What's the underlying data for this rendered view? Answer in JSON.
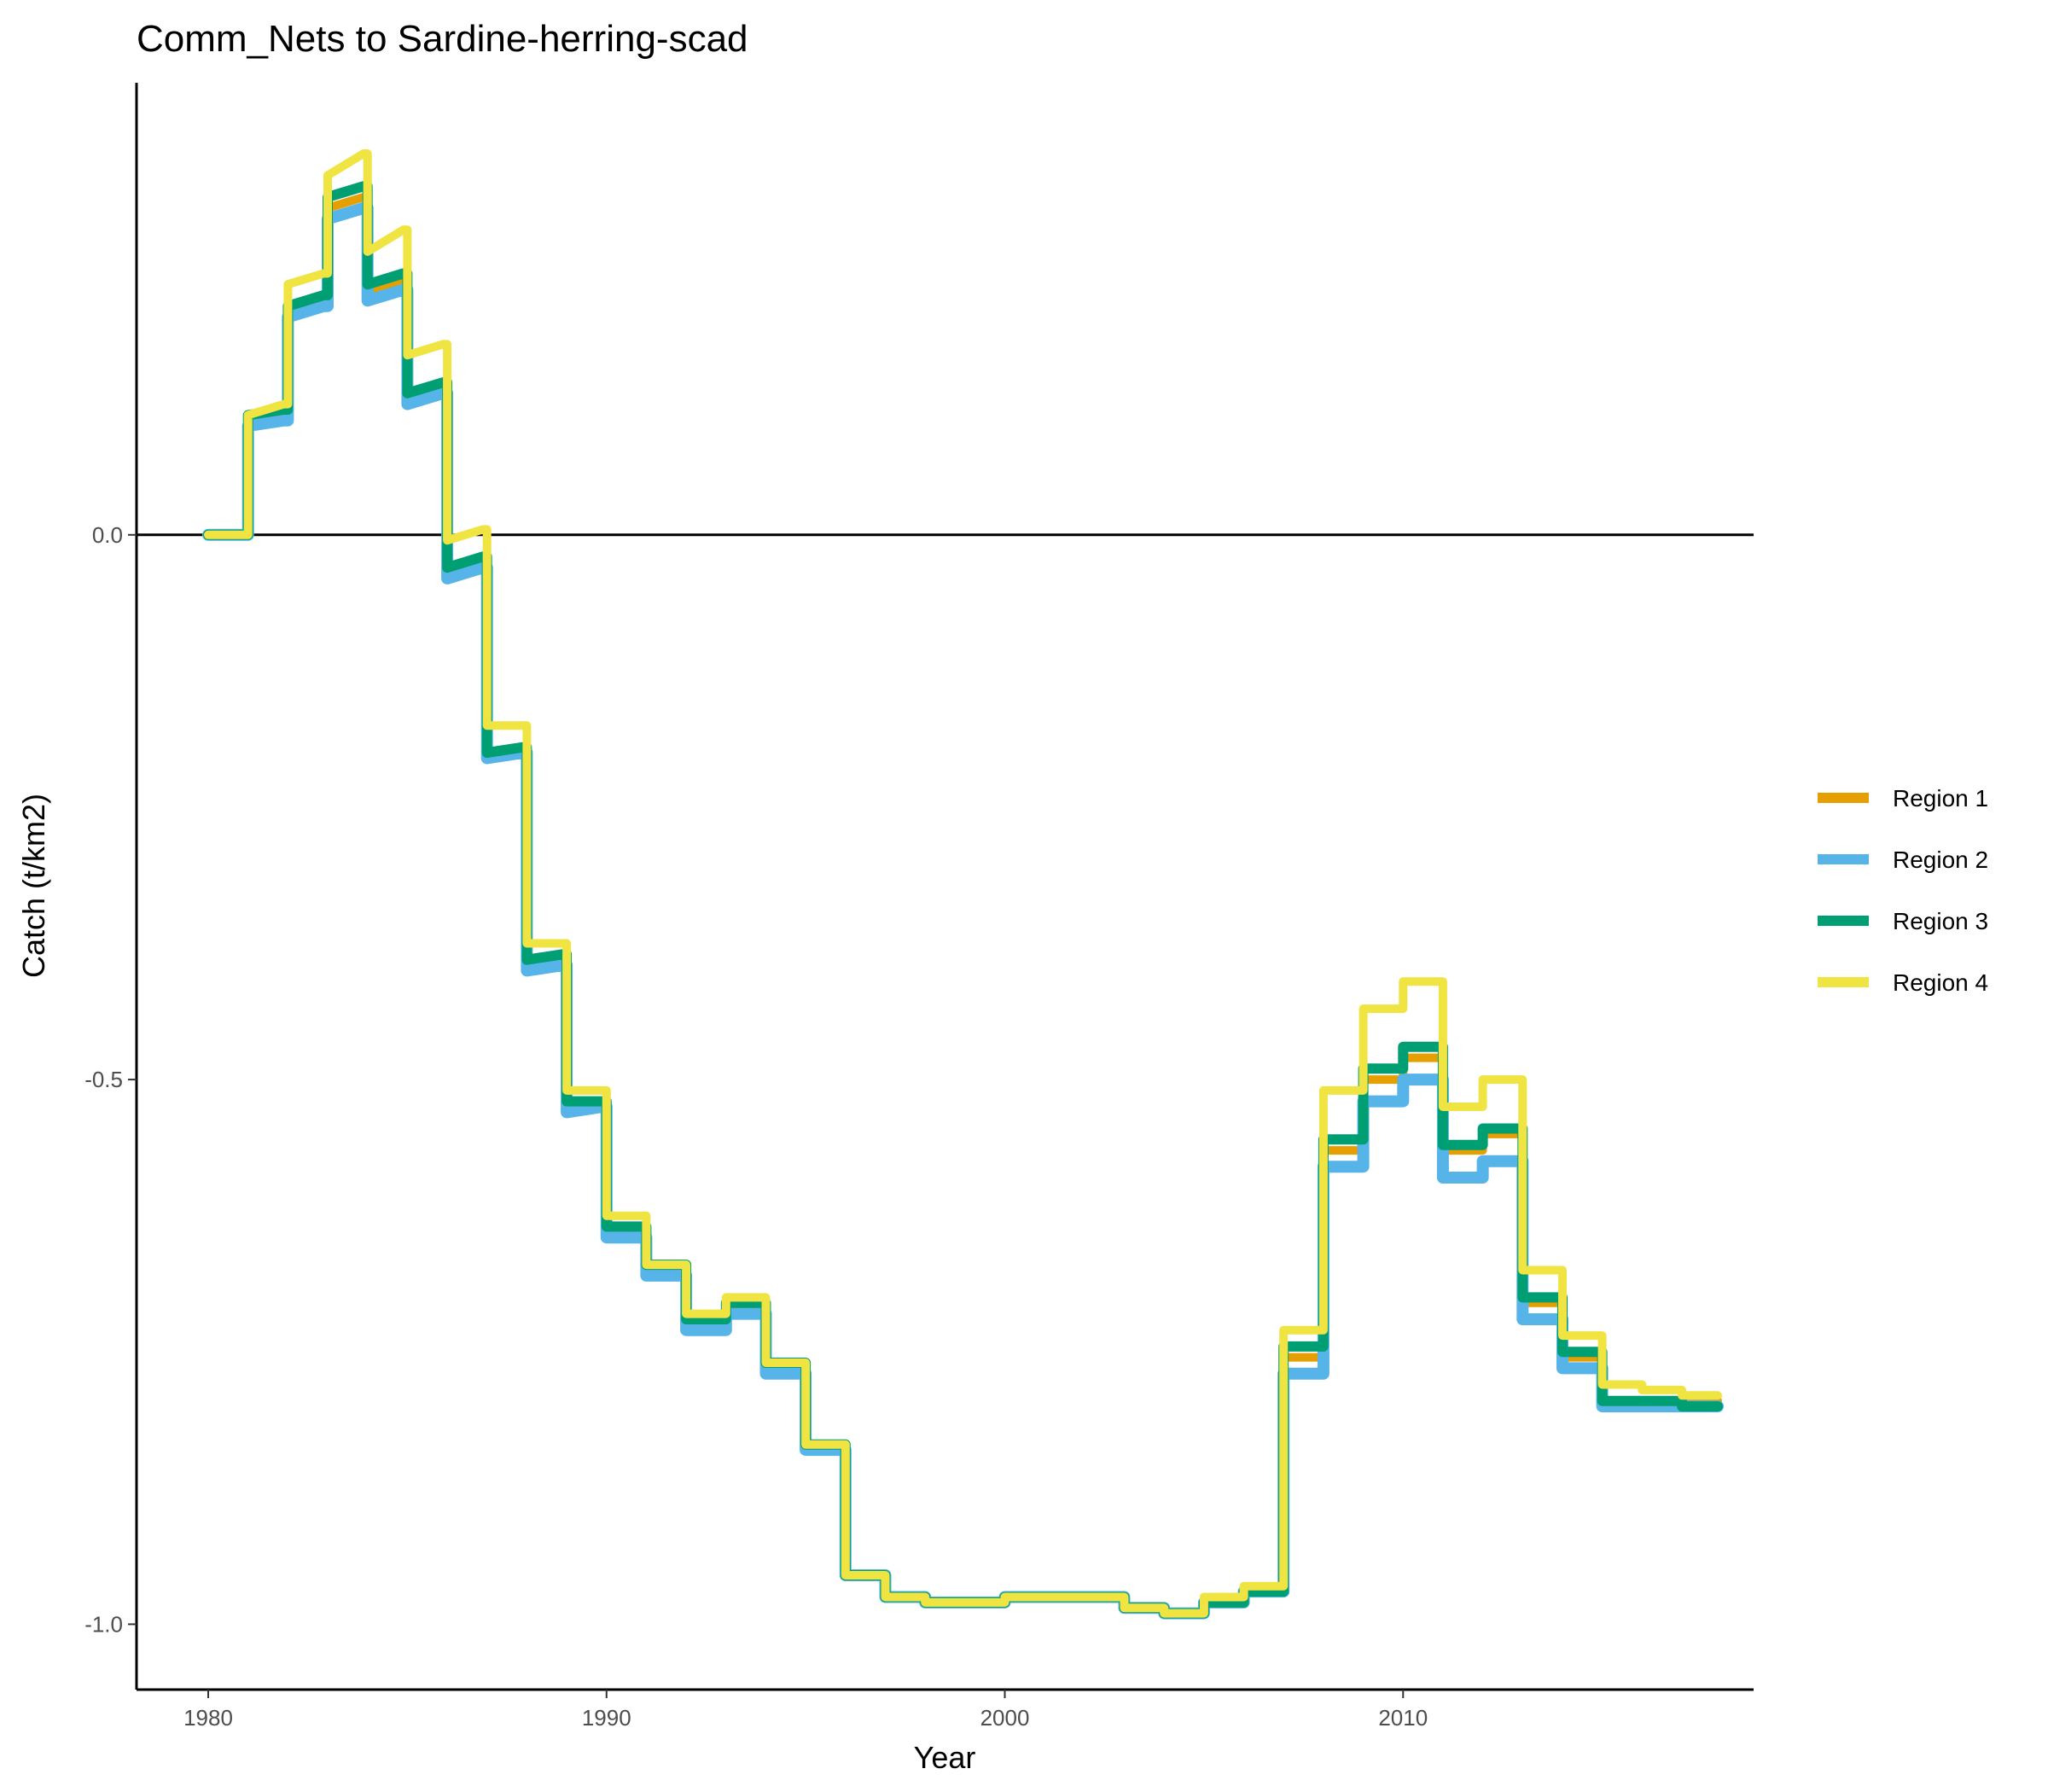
{
  "chart_data": {
    "type": "line",
    "step": true,
    "title": "Comm_Nets to Sardine-herring-scad",
    "xlabel": "Year",
    "ylabel": "Catch (t/km2)",
    "xlim": [
      1978.2,
      2018.8
    ],
    "ylim": [
      -1.06,
      0.415
    ],
    "x_ticks": [
      1980,
      1990,
      2000,
      2010
    ],
    "y_ticks": [
      0.0,
      -0.5,
      -1.0
    ],
    "x_tick_labels": [
      "1980",
      "1990",
      "2000",
      "2010"
    ],
    "y_tick_labels": [
      "0.0",
      "-0.5",
      "-1.0"
    ],
    "reference_line_y": 0,
    "grid": false,
    "legend_position": "right",
    "x": [
      1980,
      1981,
      1982,
      1983,
      1984,
      1985,
      1986,
      1987,
      1988,
      1989,
      1990,
      1991,
      1992,
      1993,
      1994,
      1995,
      1996,
      1997,
      1998,
      1999,
      2000,
      2001,
      2002,
      2003,
      2004,
      2005,
      2006,
      2007,
      2008,
      2009,
      2010,
      2011,
      2012,
      2013,
      2014,
      2015,
      2016,
      2017
    ],
    "series": [
      {
        "name": "Region 1",
        "color": "#E69F00",
        "step_values": [
          [
            0.0,
            0.0
          ],
          [
            0.105,
            0.11
          ],
          [
            0.21,
            0.22
          ],
          [
            0.3,
            0.31
          ],
          [
            0.22,
            0.235
          ],
          [
            0.13,
            0.14
          ],
          [
            -0.035,
            -0.02
          ],
          [
            -0.2,
            -0.195
          ],
          [
            -0.39,
            -0.385
          ],
          [
            -0.525,
            -0.52
          ],
          [
            -0.64,
            -0.64
          ],
          [
            -0.675,
            -0.675
          ],
          [
            -0.725,
            -0.725
          ],
          [
            -0.71,
            -0.71
          ],
          [
            -0.765,
            -0.765
          ],
          [
            -0.835,
            -0.835
          ],
          [
            -0.955,
            -0.955
          ],
          [
            -0.975,
            -0.975
          ],
          [
            -0.98,
            -0.98
          ],
          [
            -0.98,
            -0.98
          ],
          [
            -0.975,
            -0.975
          ],
          [
            -0.975,
            -0.975
          ],
          [
            -0.975,
            -0.975
          ],
          [
            -0.985,
            -0.985
          ],
          [
            -0.99,
            -0.99
          ],
          [
            -0.98,
            -0.98
          ],
          [
            -0.97,
            -0.97
          ],
          [
            -0.755,
            -0.755
          ],
          [
            -0.565,
            -0.565
          ],
          [
            -0.5,
            -0.5
          ],
          [
            -0.48,
            -0.48
          ],
          [
            -0.565,
            -0.565
          ],
          [
            -0.55,
            -0.55
          ],
          [
            -0.705,
            -0.705
          ],
          [
            -0.755,
            -0.755
          ],
          [
            -0.795,
            -0.795
          ],
          [
            -0.795,
            -0.795
          ],
          [
            -0.795,
            -0.795
          ]
        ]
      },
      {
        "name": "Region 2",
        "color": "#56B4E9",
        "step_values": [
          [
            0.0,
            0.0
          ],
          [
            0.1,
            0.105
          ],
          [
            0.2,
            0.21
          ],
          [
            0.29,
            0.3
          ],
          [
            0.215,
            0.225
          ],
          [
            0.12,
            0.13
          ],
          [
            -0.04,
            -0.03
          ],
          [
            -0.205,
            -0.2
          ],
          [
            -0.4,
            -0.395
          ],
          [
            -0.53,
            -0.525
          ],
          [
            -0.645,
            -0.645
          ],
          [
            -0.68,
            -0.68
          ],
          [
            -0.73,
            -0.73
          ],
          [
            -0.715,
            -0.715
          ],
          [
            -0.77,
            -0.77
          ],
          [
            -0.84,
            -0.84
          ],
          [
            -0.955,
            -0.955
          ],
          [
            -0.975,
            -0.975
          ],
          [
            -0.98,
            -0.98
          ],
          [
            -0.98,
            -0.98
          ],
          [
            -0.975,
            -0.975
          ],
          [
            -0.975,
            -0.975
          ],
          [
            -0.975,
            -0.975
          ],
          [
            -0.985,
            -0.985
          ],
          [
            -0.99,
            -0.99
          ],
          [
            -0.98,
            -0.98
          ],
          [
            -0.97,
            -0.97
          ],
          [
            -0.77,
            -0.77
          ],
          [
            -0.58,
            -0.58
          ],
          [
            -0.52,
            -0.52
          ],
          [
            -0.5,
            -0.5
          ],
          [
            -0.59,
            -0.59
          ],
          [
            -0.575,
            -0.575
          ],
          [
            -0.72,
            -0.72
          ],
          [
            -0.765,
            -0.765
          ],
          [
            -0.8,
            -0.8
          ],
          [
            -0.8,
            -0.8
          ],
          [
            -0.8,
            -0.8
          ]
        ]
      },
      {
        "name": "Region 3",
        "color": "#009E73",
        "step_values": [
          [
            0.0,
            0.0
          ],
          [
            0.11,
            0.115
          ],
          [
            0.21,
            0.22
          ],
          [
            0.31,
            0.32
          ],
          [
            0.23,
            0.24
          ],
          [
            0.13,
            0.14
          ],
          [
            -0.03,
            -0.02
          ],
          [
            -0.2,
            -0.195
          ],
          [
            -0.39,
            -0.385
          ],
          [
            -0.52,
            -0.52
          ],
          [
            -0.635,
            -0.635
          ],
          [
            -0.67,
            -0.67
          ],
          [
            -0.72,
            -0.72
          ],
          [
            -0.705,
            -0.705
          ],
          [
            -0.76,
            -0.76
          ],
          [
            -0.835,
            -0.835
          ],
          [
            -0.955,
            -0.955
          ],
          [
            -0.975,
            -0.975
          ],
          [
            -0.98,
            -0.98
          ],
          [
            -0.98,
            -0.98
          ],
          [
            -0.975,
            -0.975
          ],
          [
            -0.975,
            -0.975
          ],
          [
            -0.975,
            -0.975
          ],
          [
            -0.985,
            -0.985
          ],
          [
            -0.99,
            -0.99
          ],
          [
            -0.98,
            -0.98
          ],
          [
            -0.97,
            -0.97
          ],
          [
            -0.745,
            -0.745
          ],
          [
            -0.555,
            -0.555
          ],
          [
            -0.49,
            -0.49
          ],
          [
            -0.47,
            -0.47
          ],
          [
            -0.56,
            -0.56
          ],
          [
            -0.545,
            -0.545
          ],
          [
            -0.7,
            -0.7
          ],
          [
            -0.75,
            -0.75
          ],
          [
            -0.795,
            -0.795
          ],
          [
            -0.795,
            -0.795
          ],
          [
            -0.8,
            -0.8
          ]
        ]
      },
      {
        "name": "Region 4",
        "color": "#F0E442",
        "step_values": [
          [
            0.0,
            0.0
          ],
          [
            0.11,
            0.12
          ],
          [
            0.23,
            0.24
          ],
          [
            0.33,
            0.35
          ],
          [
            0.26,
            0.28
          ],
          [
            0.165,
            0.175
          ],
          [
            -0.005,
            0.005
          ],
          [
            -0.175,
            -0.175
          ],
          [
            -0.375,
            -0.375
          ],
          [
            -0.51,
            -0.51
          ],
          [
            -0.625,
            -0.625
          ],
          [
            -0.67,
            -0.67
          ],
          [
            -0.715,
            -0.715
          ],
          [
            -0.7,
            -0.7
          ],
          [
            -0.76,
            -0.76
          ],
          [
            -0.835,
            -0.835
          ],
          [
            -0.955,
            -0.955
          ],
          [
            -0.975,
            -0.975
          ],
          [
            -0.98,
            -0.98
          ],
          [
            -0.98,
            -0.98
          ],
          [
            -0.975,
            -0.975
          ],
          [
            -0.975,
            -0.975
          ],
          [
            -0.975,
            -0.975
          ],
          [
            -0.985,
            -0.985
          ],
          [
            -0.99,
            -0.99
          ],
          [
            -0.975,
            -0.975
          ],
          [
            -0.965,
            -0.965
          ],
          [
            -0.73,
            -0.73
          ],
          [
            -0.51,
            -0.51
          ],
          [
            -0.435,
            -0.435
          ],
          [
            -0.41,
            -0.41
          ],
          [
            -0.525,
            -0.525
          ],
          [
            -0.5,
            -0.5
          ],
          [
            -0.675,
            -0.675
          ],
          [
            -0.735,
            -0.735
          ],
          [
            -0.78,
            -0.78
          ],
          [
            -0.785,
            -0.785
          ],
          [
            -0.79,
            -0.79
          ]
        ]
      }
    ]
  }
}
